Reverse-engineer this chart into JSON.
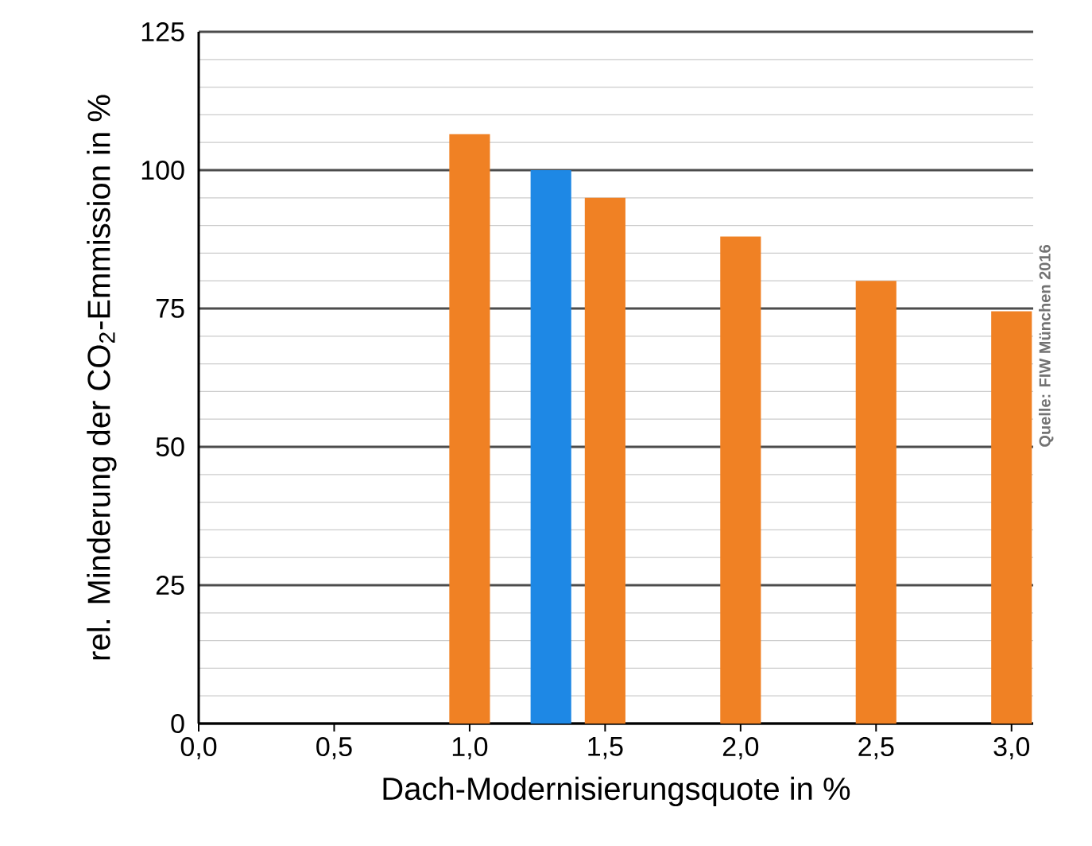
{
  "chart_data": {
    "type": "bar",
    "xlabel": "Dach-Modernisierungsquote in %",
    "ylabel": "rel. Minderung der CO$_{2}$-Emmission in %",
    "x": [
      1.0,
      1.3,
      1.5,
      2.0,
      2.5,
      3.0
    ],
    "values": [
      106.5,
      100,
      95,
      88,
      80,
      74.5
    ],
    "colors": [
      "#f08124",
      "#1e88e5",
      "#f08124",
      "#f08124",
      "#f08124",
      "#f08124"
    ],
    "xlim": [
      0,
      3.08
    ],
    "xticks": [
      {
        "value": 0,
        "label": "0,0"
      },
      {
        "value": 0.5,
        "label": "0,5"
      },
      {
        "value": 1.0,
        "label": "1,0"
      },
      {
        "value": 1.5,
        "label": "1,5"
      },
      {
        "value": 2.0,
        "label": "2,0"
      },
      {
        "value": 2.5,
        "label": "2,5"
      },
      {
        "value": 3.0,
        "label": "3,0"
      }
    ],
    "ylim": [
      0,
      125
    ],
    "yticks": [
      0,
      25,
      50,
      75,
      100,
      125
    ],
    "grid": "y",
    "annotations": [
      "Quelle: FIW München 2016"
    ]
  }
}
